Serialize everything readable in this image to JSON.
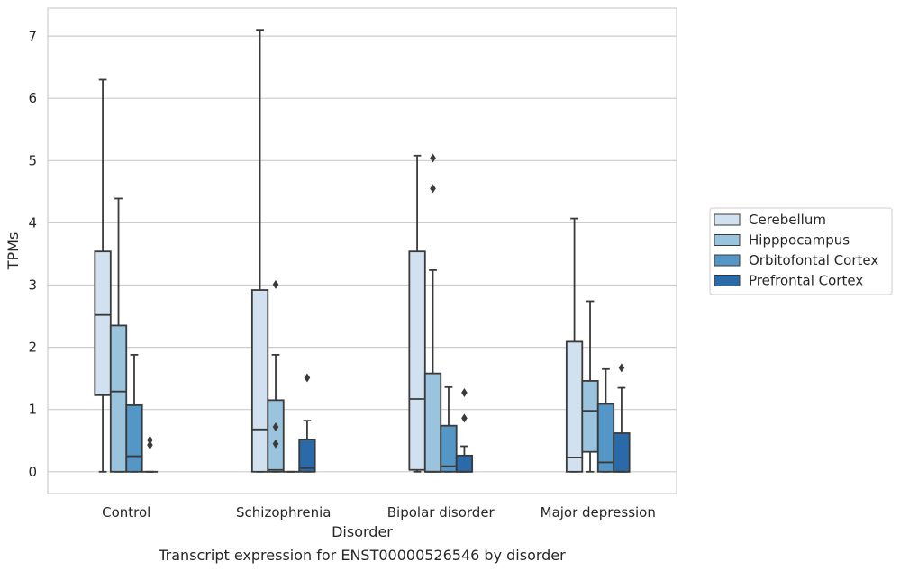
{
  "chart_data": {
    "type": "box",
    "title": "",
    "caption": "Transcript expression for ENST00000526546 by disorder",
    "xlabel": "Disorder",
    "ylabel": "TPMs",
    "ylim": [
      -0.35,
      7.45
    ],
    "yticks": [
      0,
      1,
      2,
      3,
      4,
      5,
      6,
      7
    ],
    "categories": [
      "Control",
      "Schizophrenia",
      "Bipolar disorder",
      "Major depression"
    ],
    "grid": "horizontal",
    "legend_position": "right",
    "series": [
      {
        "name": "Cerebellum",
        "color": "#d2e1f0",
        "boxes": [
          {
            "whisker_low": 0.0,
            "q1": 1.23,
            "median": 2.52,
            "q3": 3.54,
            "whisker_high": 6.3,
            "outliers": []
          },
          {
            "whisker_low": 0.0,
            "q1": 0.0,
            "median": 0.68,
            "q3": 2.92,
            "whisker_high": 7.1,
            "outliers": []
          },
          {
            "whisker_low": 0.0,
            "q1": 0.03,
            "median": 1.17,
            "q3": 3.54,
            "whisker_high": 5.08,
            "outliers": []
          },
          {
            "whisker_low": 0.0,
            "q1": 0.0,
            "median": 0.23,
            "q3": 2.09,
            "whisker_high": 4.07,
            "outliers": []
          }
        ]
      },
      {
        "name": "Hipppocampus",
        "color": "#9ac4de",
        "boxes": [
          {
            "whisker_low": 0.0,
            "q1": 0.0,
            "median": 1.29,
            "q3": 2.35,
            "whisker_high": 4.39,
            "outliers": []
          },
          {
            "whisker_low": 0.0,
            "q1": 0.0,
            "median": 0.03,
            "q3": 1.15,
            "whisker_high": 1.88,
            "outliers": [
              3.01,
              0.72,
              0.45
            ]
          },
          {
            "whisker_low": 0.0,
            "q1": 0.0,
            "median": 0.0,
            "q3": 1.58,
            "whisker_high": 3.24,
            "outliers": [
              5.04,
              4.55
            ]
          },
          {
            "whisker_low": 0.0,
            "q1": 0.32,
            "median": 0.98,
            "q3": 1.46,
            "whisker_high": 2.74,
            "outliers": []
          }
        ]
      },
      {
        "name": "Orbitofontal Cortex",
        "color": "#5496c5",
        "boxes": [
          {
            "whisker_low": 0.0,
            "q1": 0.0,
            "median": 0.25,
            "q3": 1.07,
            "whisker_high": 1.88,
            "outliers": []
          },
          {
            "whisker_low": 0.0,
            "q1": 0.0,
            "median": 0.0,
            "q3": 0.0,
            "whisker_high": 0.0,
            "outliers": []
          },
          {
            "whisker_low": 0.0,
            "q1": 0.0,
            "median": 0.09,
            "q3": 0.74,
            "whisker_high": 1.36,
            "outliers": []
          },
          {
            "whisker_low": 0.0,
            "q1": 0.0,
            "median": 0.15,
            "q3": 1.09,
            "whisker_high": 1.65,
            "outliers": []
          }
        ]
      },
      {
        "name": "Prefrontal Cortex",
        "color": "#2b6aa8",
        "boxes": [
          {
            "whisker_low": 0.0,
            "q1": 0.0,
            "median": 0.0,
            "q3": 0.0,
            "whisker_high": 0.0,
            "outliers": [
              0.51,
              0.43
            ]
          },
          {
            "whisker_low": 0.0,
            "q1": 0.0,
            "median": 0.06,
            "q3": 0.52,
            "whisker_high": 0.82,
            "outliers": [
              1.51
            ]
          },
          {
            "whisker_low": 0.0,
            "q1": 0.0,
            "median": 0.0,
            "q3": 0.26,
            "whisker_high": 0.41,
            "outliers": [
              1.27,
              0.86
            ]
          },
          {
            "whisker_low": 0.0,
            "q1": 0.0,
            "median": 0.0,
            "q3": 0.62,
            "whisker_high": 1.35,
            "outliers": [
              1.67
            ]
          }
        ]
      }
    ]
  }
}
